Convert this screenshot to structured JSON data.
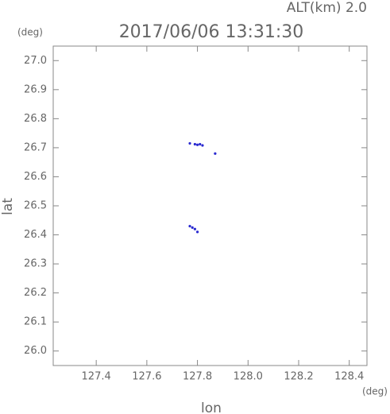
{
  "chart_data": {
    "type": "scatter",
    "title": "2017/06/06 13:31:30",
    "subtitle": "ALT(km) 2.0",
    "xlabel": "lon",
    "ylabel": "lat",
    "x_unit": "(deg)",
    "y_unit": "(deg)",
    "color": "#2a2ad0",
    "x": [
      127.77,
      127.79,
      127.8,
      127.81,
      127.82,
      127.87,
      127.77,
      127.78,
      127.79,
      127.8
    ],
    "values": [
      26.715,
      26.712,
      26.71,
      26.712,
      26.708,
      26.68,
      26.43,
      26.425,
      26.42,
      26.41
    ],
    "xlim": [
      127.23,
      128.47
    ],
    "ylim": [
      25.95,
      27.05
    ],
    "xticks": [
      127.4,
      127.6,
      127.8,
      {
        "value": 128,
        "label": "128.0"
      },
      128.2,
      128.4
    ],
    "yticks": [
      {
        "value": 26,
        "label": "26.0"
      },
      26.1,
      26.2,
      26.3,
      26.4,
      26.5,
      26.6,
      26.7,
      26.8,
      26.9,
      {
        "value": 27,
        "label": "27.0"
      }
    ]
  }
}
